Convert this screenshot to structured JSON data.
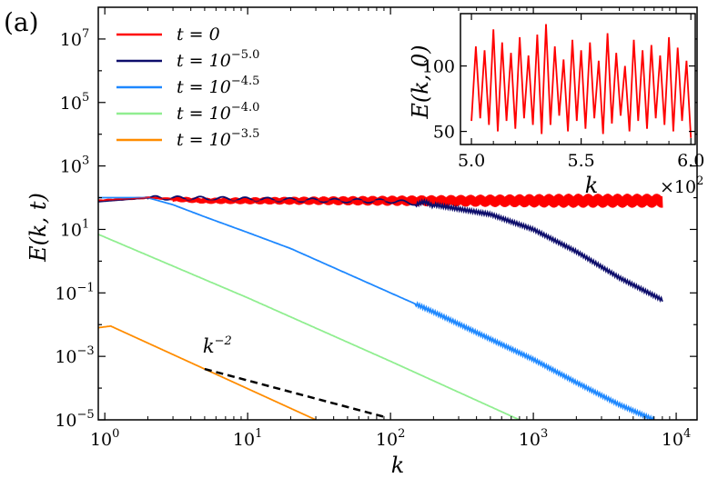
{
  "panel_label": "(a)",
  "chart_data": [
    {
      "type": "line",
      "title": "",
      "xlabel": "k",
      "ylabel": "E(k, t)",
      "xscale": "log",
      "yscale": "log",
      "xlim": [
        0.9,
        14000
      ],
      "ylim": [
        1e-05,
        100000000
      ],
      "x_ticks": [
        {
          "value": 1,
          "base": "10",
          "exp": "0"
        },
        {
          "value": 10,
          "base": "10",
          "exp": "1"
        },
        {
          "value": 100,
          "base": "10",
          "exp": "2"
        },
        {
          "value": 1000,
          "base": "10",
          "exp": "3"
        },
        {
          "value": 10000,
          "base": "10",
          "exp": "4"
        }
      ],
      "y_ticks": [
        {
          "value": 1e-05,
          "base": "10",
          "exp": "−5"
        },
        {
          "value": 0.001,
          "base": "10",
          "exp": "−3"
        },
        {
          "value": 0.1,
          "base": "10",
          "exp": "−1"
        },
        {
          "value": 10,
          "base": "10",
          "exp": "1"
        },
        {
          "value": 1000,
          "base": "10",
          "exp": "3"
        },
        {
          "value": 100000,
          "base": "10",
          "exp": "5"
        },
        {
          "value": 10000000,
          "base": "10",
          "exp": "7"
        }
      ],
      "legend_position": "top-left",
      "series": [
        {
          "name": "t = 0",
          "legend_prefix": "t = ",
          "legend_value": "0",
          "legend_exp": "",
          "color": "#ff0000",
          "x": [
            0.9,
            2,
            5,
            10,
            100,
            1000,
            8000
          ],
          "y": [
            80,
            100,
            80,
            80,
            80,
            80,
            80
          ],
          "oscillating": true
        },
        {
          "name": "t = 10^-5.0",
          "legend_prefix": "t = ",
          "legend_value": "10",
          "legend_exp": "−5.0",
          "color": "#0d0d6b",
          "x": [
            0.9,
            2,
            10,
            50,
            100,
            200,
            500,
            1000,
            2000,
            4000,
            8000
          ],
          "y": [
            75,
            100,
            90,
            80,
            78,
            60,
            30,
            10,
            2,
            0.3,
            0.06
          ]
        },
        {
          "name": "t = 10^-4.5",
          "legend_prefix": "t = ",
          "legend_value": "10",
          "legend_exp": "−4.5",
          "color": "#1e88ff",
          "x": [
            0.9,
            2,
            3,
            5,
            10,
            20,
            50,
            100,
            200,
            500,
            1000,
            2000,
            4000,
            7000
          ],
          "y": [
            100,
            100,
            60,
            25,
            8,
            2.5,
            0.4,
            0.1,
            0.025,
            0.0035,
            0.0008,
            0.00015,
            3e-05,
            1e-05
          ]
        },
        {
          "name": "t = 10^-4.0",
          "legend_prefix": "t = ",
          "legend_value": "10",
          "legend_exp": "−4.0",
          "color": "#90ee90",
          "x": [
            0.9,
            10,
            100,
            800
          ],
          "y": [
            7,
            0.07,
            0.0007,
            1e-05
          ]
        },
        {
          "name": "t = 10^-3.5",
          "legend_prefix": "t = ",
          "legend_value": "10",
          "legend_exp": "−3.5",
          "color": "#ff8c00",
          "x": [
            0.9,
            1.1,
            30
          ],
          "y": [
            0.008,
            0.009,
            1e-05
          ]
        }
      ],
      "annotations": [
        {
          "type": "reference-line",
          "label_base": "k",
          "label_exp": "−2",
          "style": "dashed",
          "color": "#000000",
          "x": [
            5,
            90
          ],
          "y": [
            0.0004,
            1.25e-05
          ]
        }
      ]
    },
    {
      "type": "line",
      "role": "inset",
      "title": "",
      "xlabel": "k",
      "ylabel": "E(k, 0)",
      "xlim": [
        4.95,
        6.02
      ],
      "ylim": [
        40,
        140
      ],
      "x_ticks": [
        "5.0",
        "5.5",
        "6.0"
      ],
      "x_tick_values": [
        5.0,
        5.5,
        6.0
      ],
      "x_multiplier_base": "×10",
      "x_multiplier_exp": "2",
      "y_ticks": [
        "50",
        "100"
      ],
      "y_tick_values": [
        50,
        100
      ],
      "series": [
        {
          "name": "t = 0",
          "color": "#ff0000",
          "x": [
            5.0,
            5.02,
            5.04,
            5.06,
            5.08,
            5.1,
            5.12,
            5.14,
            5.16,
            5.18,
            5.2,
            5.22,
            5.24,
            5.26,
            5.28,
            5.3,
            5.32,
            5.34,
            5.36,
            5.38,
            5.4,
            5.42,
            5.44,
            5.46,
            5.48,
            5.5,
            5.52,
            5.54,
            5.56,
            5.58,
            5.6,
            5.62,
            5.64,
            5.66,
            5.68,
            5.7,
            5.72,
            5.74,
            5.76,
            5.78,
            5.8,
            5.82,
            5.84,
            5.86,
            5.88,
            5.9,
            5.92,
            5.94,
            5.96,
            5.98,
            6.0
          ],
          "y": [
            58,
            115,
            60,
            112,
            55,
            128,
            50,
            118,
            58,
            110,
            52,
            122,
            60,
            108,
            55,
            124,
            48,
            132,
            55,
            115,
            62,
            105,
            50,
            120,
            58,
            112,
            52,
            118,
            60,
            104,
            48,
            125,
            56,
            110,
            62,
            100,
            50,
            120,
            58,
            112,
            52,
            116,
            60,
            108,
            55,
            122,
            50,
            114,
            58,
            104,
            45
          ]
        }
      ]
    }
  ]
}
